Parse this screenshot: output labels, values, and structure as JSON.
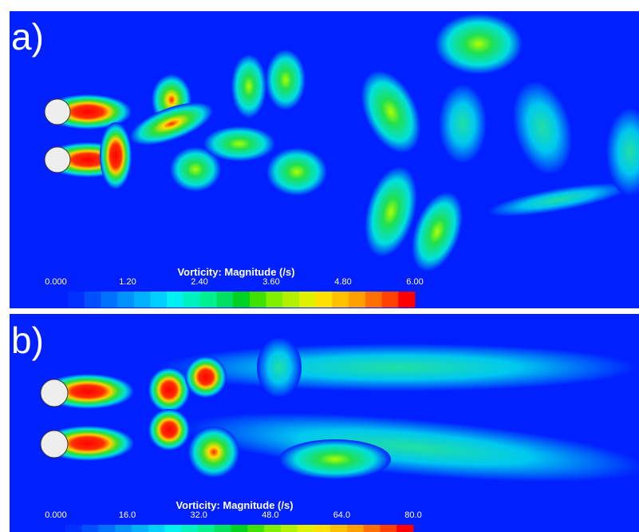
{
  "panels": [
    {
      "label": "a)",
      "colorbar": {
        "title": "Vorticity: Magnitude (/s)",
        "ticks": [
          "0.000",
          "1.20",
          "2.40",
          "3.60",
          "4.80",
          "6.00"
        ]
      }
    },
    {
      "label": "b)",
      "colorbar": {
        "title": "Vorticity: Magnitude (/s)",
        "ticks": [
          "0.000",
          "16.0",
          "32.0",
          "48.0",
          "64.0",
          "80.0"
        ]
      }
    }
  ]
}
